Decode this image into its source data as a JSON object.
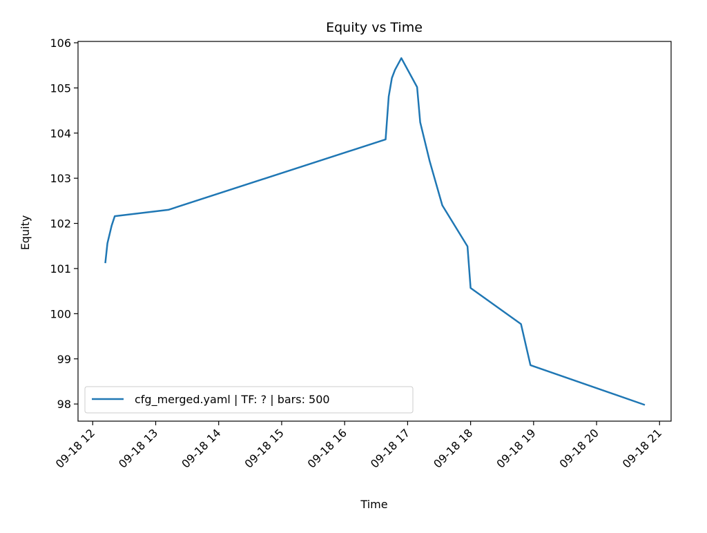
{
  "chart_data": {
    "type": "line",
    "title": "Equity vs Time",
    "xlabel": "Time",
    "ylabel": "Equity",
    "xlim": [
      "09-18 11:46",
      "09-18 21:11"
    ],
    "ylim": [
      97.62,
      106.03
    ],
    "x_ticks": [
      "09-18 12",
      "09-18 13",
      "09-18 14",
      "09-18 15",
      "09-18 16",
      "09-18 17",
      "09-18 18",
      "09-18 19",
      "09-18 20",
      "09-18 21"
    ],
    "y_ticks": [
      98,
      99,
      100,
      101,
      102,
      103,
      104,
      105,
      106
    ],
    "grid": false,
    "legend": "lower-left",
    "series": [
      {
        "name": "cfg_merged.yaml | TF: ? | bars: 500",
        "color": "#1f77b4",
        "x": [
          "09-18 12:12",
          "09-18 12:14",
          "09-18 12:18",
          "09-18 12:21",
          "09-18 13:12",
          "09-18 16:39",
          "09-18 16:42",
          "09-18 16:45",
          "09-18 16:48",
          "09-18 16:54",
          "09-18 17:09",
          "09-18 17:12",
          "09-18 17:21",
          "09-18 17:33",
          "09-18 17:57",
          "09-18 18:00",
          "09-18 18:48",
          "09-18 18:57",
          "09-18 20:46"
        ],
        "y": [
          101.12,
          101.56,
          101.95,
          102.16,
          102.3,
          103.86,
          104.81,
          105.22,
          105.4,
          105.66,
          105.02,
          104.24,
          103.38,
          102.4,
          101.49,
          100.57,
          99.77,
          98.86,
          97.98
        ]
      }
    ]
  }
}
